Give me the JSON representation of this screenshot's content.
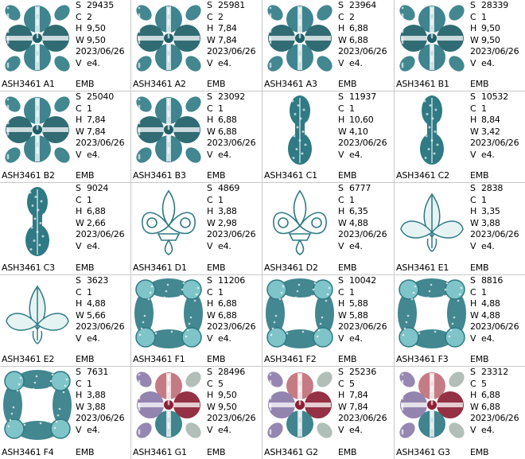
{
  "colors": {
    "teal": "#2f7a84",
    "teal_dark": "#1f5f68",
    "teal_light": "#7fc4c9",
    "rose": "#c0707a",
    "maroon": "#8b2034",
    "violet": "#8a7aa8",
    "sage": "#a8b8b0"
  },
  "labels": {
    "s": "S",
    "c": "C",
    "h": "H",
    "w": "W",
    "v": "V"
  },
  "designs": [
    {
      "name": "ASH3461  A1",
      "stitches": "29435",
      "colors": "2",
      "height": "9,50",
      "width": "9,50",
      "date": "2023/06/26",
      "version": "e4.",
      "format": "EMB",
      "thumb": "square-quatrefoil-icon",
      "palette": "teal"
    },
    {
      "name": "ASH3461  A2",
      "stitches": "25981",
      "colors": "2",
      "height": "7,84",
      "width": "7,84",
      "date": "2023/06/26",
      "version": "e4.",
      "format": "EMB",
      "thumb": "square-quatrefoil-icon",
      "palette": "teal"
    },
    {
      "name": "ASH3461  A3",
      "stitches": "23964",
      "colors": "2",
      "height": "6,88",
      "width": "6,88",
      "date": "2023/06/26",
      "version": "e4.",
      "format": "EMB",
      "thumb": "square-quatrefoil-icon",
      "palette": "teal"
    },
    {
      "name": "ASH3461  B1",
      "stitches": "28339",
      "colors": "1",
      "height": "9,50",
      "width": "9,50",
      "date": "2023/06/26",
      "version": "e4.",
      "format": "EMB",
      "thumb": "square-quatrefoil-icon",
      "palette": "teal"
    },
    {
      "name": "ASH3461  B2",
      "stitches": "25040",
      "colors": "1",
      "height": "7,84",
      "width": "7,84",
      "date": "2023/06/26",
      "version": "e4.",
      "format": "EMB",
      "thumb": "square-quatrefoil-icon",
      "palette": "teal"
    },
    {
      "name": "ASH3461  B3",
      "stitches": "23092",
      "colors": "1",
      "height": "6,88",
      "width": "6,88",
      "date": "2023/06/26",
      "version": "e4.",
      "format": "EMB",
      "thumb": "square-quatrefoil-icon",
      "palette": "teal"
    },
    {
      "name": "ASH3461  C1",
      "stitches": "11937",
      "colors": "1",
      "height": "10,60",
      "width": "4,10",
      "date": "2023/06/26",
      "version": "e4.",
      "format": "EMB",
      "thumb": "tall-border-icon",
      "palette": "teal"
    },
    {
      "name": "ASH3461  C2",
      "stitches": "10532",
      "colors": "1",
      "height": "8,84",
      "width": "3,42",
      "date": "2023/06/26",
      "version": "e4.",
      "format": "EMB",
      "thumb": "tall-border-icon",
      "palette": "teal"
    },
    {
      "name": "ASH3461  C3",
      "stitches": "9024",
      "colors": "1",
      "height": "6,88",
      "width": "2,66",
      "date": "2023/06/26",
      "version": "e4.",
      "format": "EMB",
      "thumb": "tall-border-icon",
      "palette": "teal"
    },
    {
      "name": "ASH3461  D1",
      "stitches": "4869",
      "colors": "1",
      "height": "3,88",
      "width": "2,98",
      "date": "2023/06/26",
      "version": "e4.",
      "format": "EMB",
      "thumb": "fleur-de-lis-icon",
      "palette": "teal"
    },
    {
      "name": "ASH3461  D2",
      "stitches": "6777",
      "colors": "1",
      "height": "6,35",
      "width": "4,88",
      "date": "2023/06/26",
      "version": "e4.",
      "format": "EMB",
      "thumb": "fleur-de-lis-icon",
      "palette": "teal"
    },
    {
      "name": "ASH3461  E1",
      "stitches": "2838",
      "colors": "1",
      "height": "3,35",
      "width": "3,88",
      "date": "2023/06/26",
      "version": "e4.",
      "format": "EMB",
      "thumb": "leaf-motif-icon",
      "palette": "teal"
    },
    {
      "name": "ASH3461  E2",
      "stitches": "3623",
      "colors": "1",
      "height": "4,88",
      "width": "5,66",
      "date": "2023/06/26",
      "version": "e4.",
      "format": "EMB",
      "thumb": "leaf-motif-icon",
      "palette": "teal"
    },
    {
      "name": "ASH3461  F1",
      "stitches": "11206",
      "colors": "1",
      "height": "6,88",
      "width": "6,88",
      "date": "2023/06/26",
      "version": "e4.",
      "format": "EMB",
      "thumb": "leaf-frame-icon",
      "palette": "teal"
    },
    {
      "name": "ASH3461  F2",
      "stitches": "10042",
      "colors": "1",
      "height": "5,88",
      "width": "5,88",
      "date": "2023/06/26",
      "version": "e4.",
      "format": "EMB",
      "thumb": "leaf-frame-icon",
      "palette": "teal"
    },
    {
      "name": "ASH3461  F3",
      "stitches": "8816",
      "colors": "1",
      "height": "4,88",
      "width": "4,88",
      "date": "2023/06/26",
      "version": "e4.",
      "format": "EMB",
      "thumb": "leaf-frame-icon",
      "palette": "teal"
    },
    {
      "name": "ASH3461  F4",
      "stitches": "7631",
      "colors": "1",
      "height": "3,88",
      "width": "3,88",
      "date": "2023/06/26",
      "version": "e4.",
      "format": "EMB",
      "thumb": "leaf-frame-icon",
      "palette": "teal"
    },
    {
      "name": "ASH3461  G1",
      "stitches": "28496",
      "colors": "5",
      "height": "9,50",
      "width": "9,50",
      "date": "2023/06/26",
      "version": "e4.",
      "format": "EMB",
      "thumb": "square-quatrefoil-icon",
      "palette": "multi"
    },
    {
      "name": "ASH3461  G2",
      "stitches": "25236",
      "colors": "5",
      "height": "7,84",
      "width": "7,84",
      "date": "2023/06/26",
      "version": "e4.",
      "format": "EMB",
      "thumb": "square-quatrefoil-icon",
      "palette": "multi"
    },
    {
      "name": "ASH3461  G3",
      "stitches": "23312",
      "colors": "5",
      "height": "6,88",
      "width": "6,88",
      "date": "2023/06/26",
      "version": "e4.",
      "format": "EMB",
      "thumb": "square-quatrefoil-icon",
      "palette": "multi"
    }
  ]
}
